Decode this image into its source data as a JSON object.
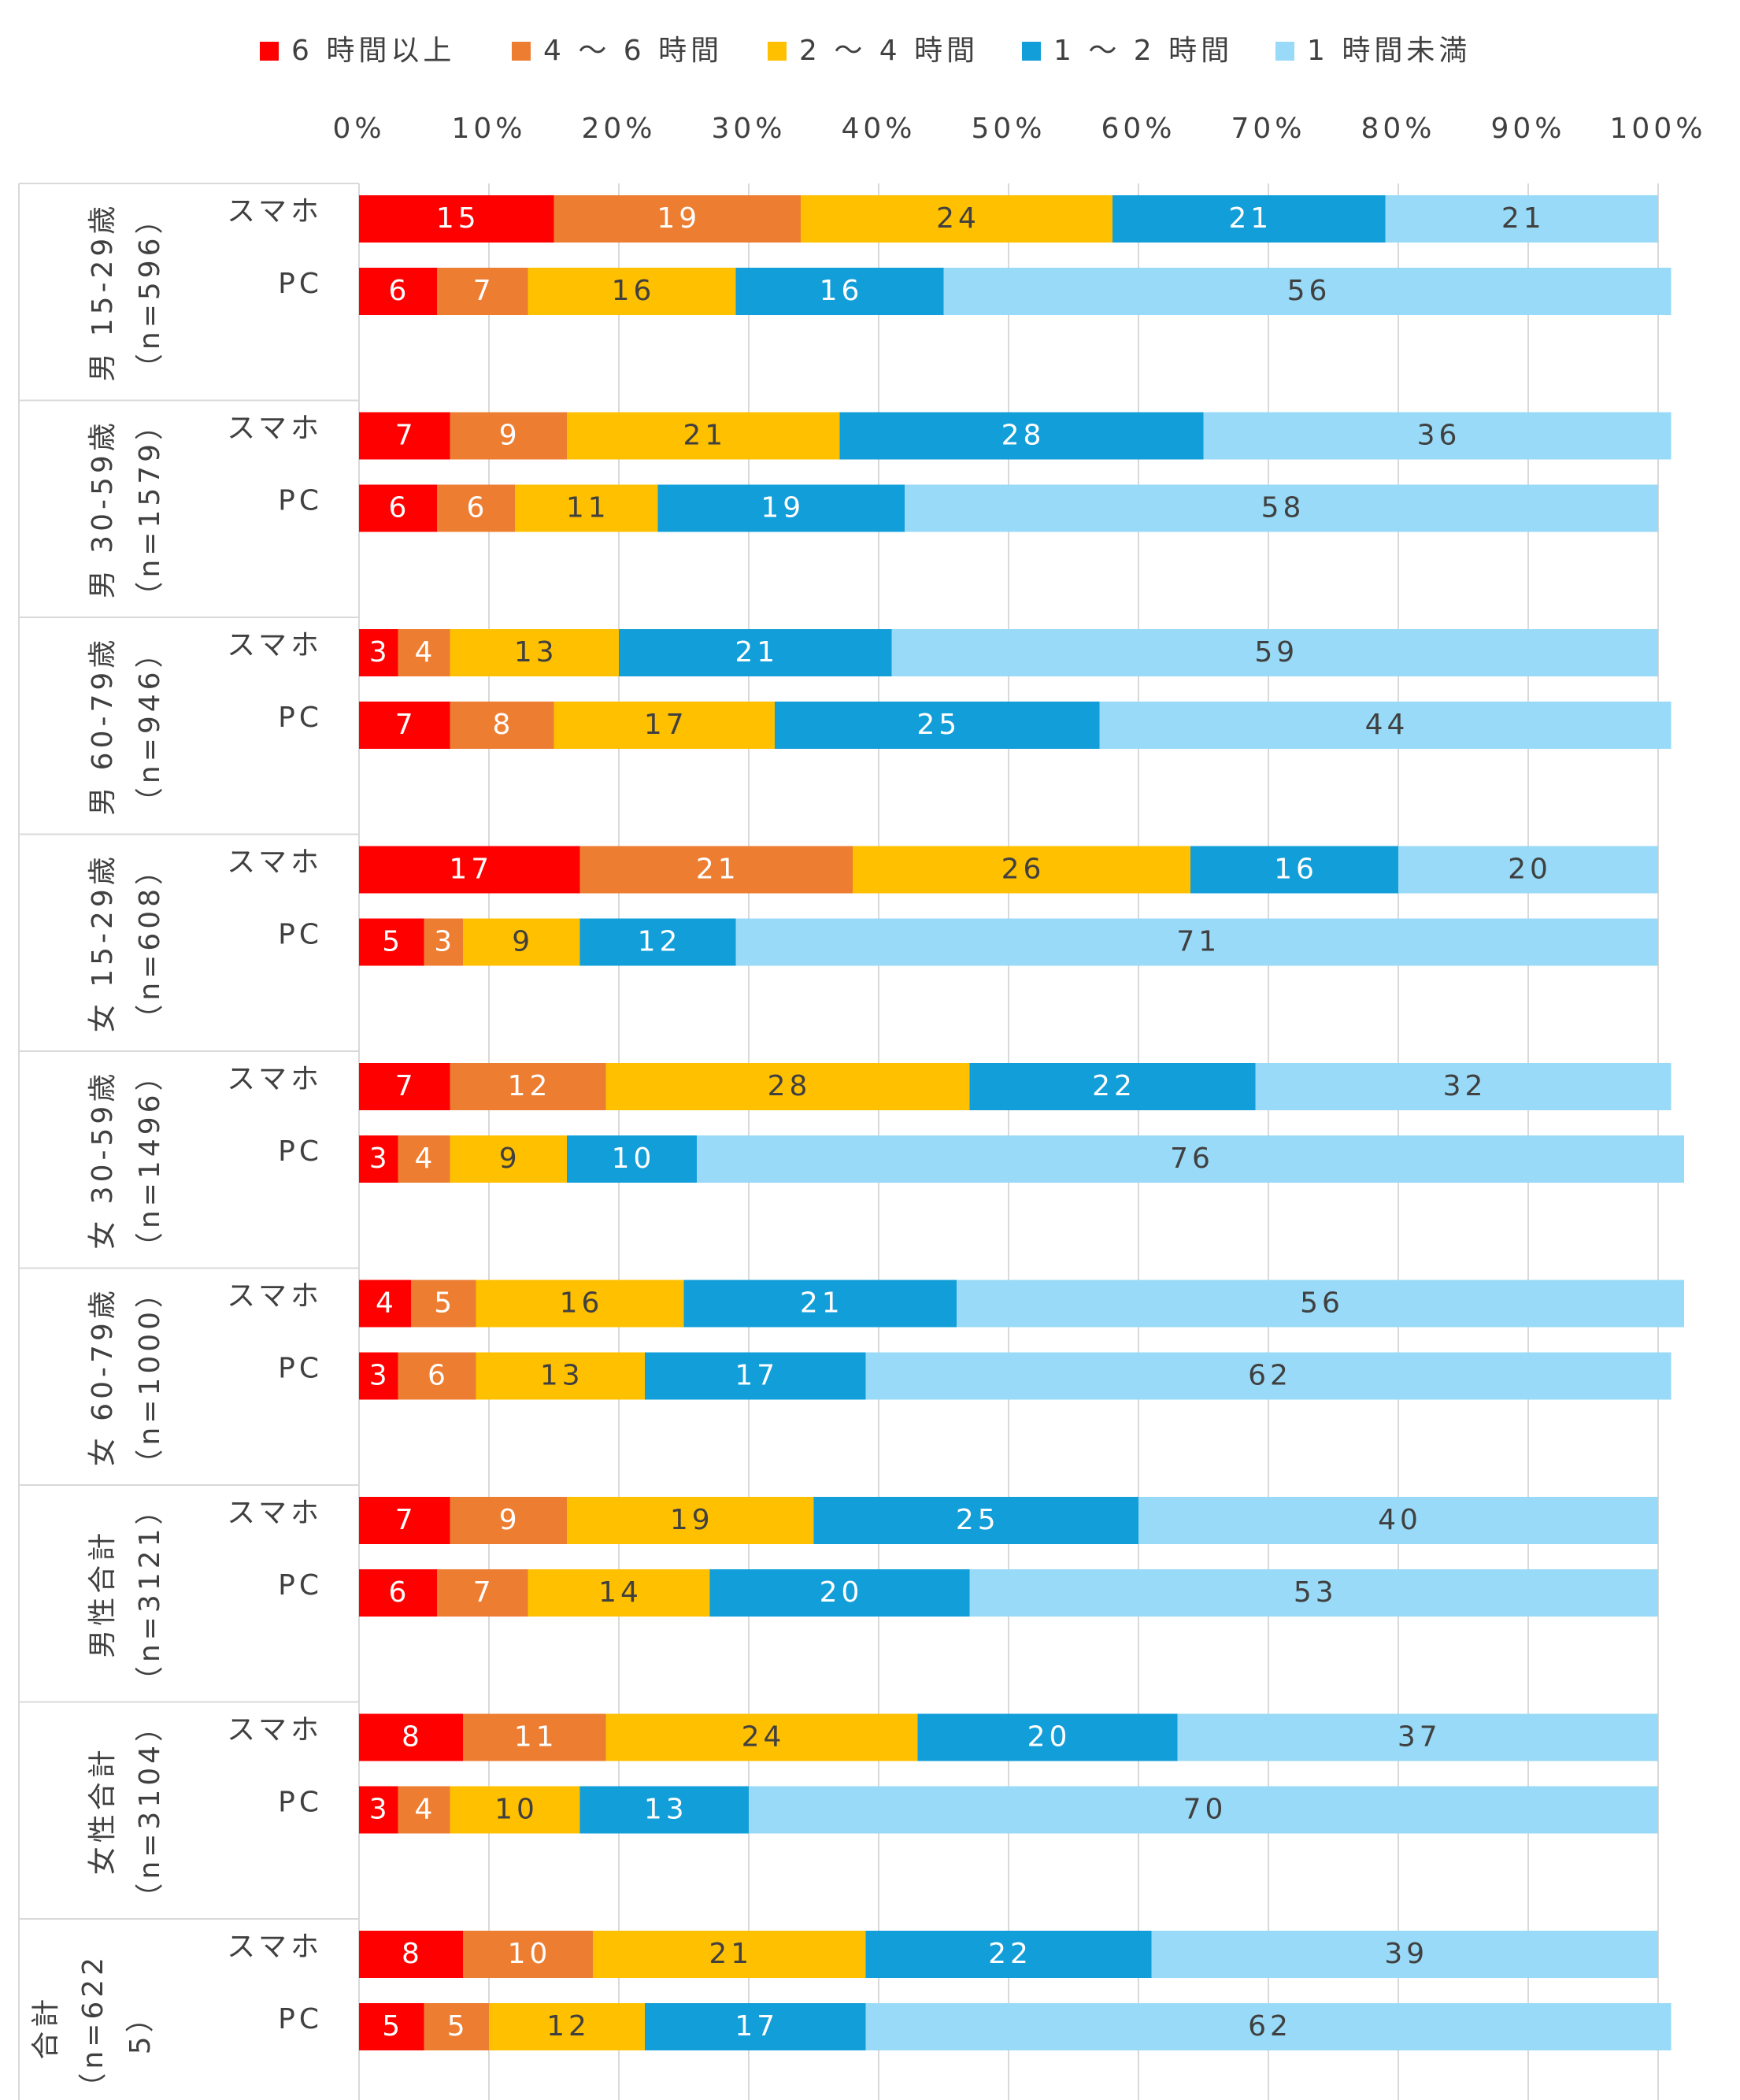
{
  "chart_data": {
    "type": "stacked-bar-horizontal",
    "legend": {
      "position": "top"
    },
    "xlim": [
      0,
      100
    ],
    "xticks": [
      {
        "value": 0,
        "label": "0%"
      },
      {
        "value": 10,
        "label": "10%"
      },
      {
        "value": 20,
        "label": "20%"
      },
      {
        "value": 30,
        "label": "30%"
      },
      {
        "value": 40,
        "label": "40%"
      },
      {
        "value": 50,
        "label": "50%"
      },
      {
        "value": 60,
        "label": "60%"
      },
      {
        "value": 70,
        "label": "70%"
      },
      {
        "value": 80,
        "label": "80%"
      },
      {
        "value": 90,
        "label": "90%"
      },
      {
        "value": 100,
        "label": "100%"
      }
    ],
    "grid": true,
    "groups": [
      [
        "男 15-29歳",
        "（n=596）"
      ],
      [
        "男 30-59歳",
        "（n=1579）"
      ],
      [
        "男 60-79歳",
        "（n=946）"
      ],
      [
        "女 15-29歳",
        "（n=608）"
      ],
      [
        "女 30-59歳",
        "（n=1496）"
      ],
      [
        "女 60-79歳",
        "（n=1000）"
      ],
      [
        "男性合計",
        "（n=3121）"
      ],
      [
        "女性合計",
        "（n=3104）"
      ],
      [
        "合計",
        "（n=622",
        "5）"
      ]
    ],
    "categories": [
      "スマホ",
      "PC",
      "スマホ",
      "PC",
      "スマホ",
      "PC",
      "スマホ",
      "PC",
      "スマホ",
      "PC",
      "スマホ",
      "PC",
      "スマホ",
      "PC",
      "スマホ",
      "PC",
      "スマホ",
      "PC"
    ],
    "series": [
      {
        "name": "6 時間以上",
        "color": "#ff0000",
        "text_color": "#ffffff",
        "values": [
          15,
          6,
          7,
          6,
          3,
          7,
          17,
          5,
          7,
          3,
          4,
          3,
          7,
          6,
          8,
          3,
          8,
          5
        ]
      },
      {
        "name": "4 ～ 6 時間",
        "color": "#ed7d31",
        "text_color": "#ffffff",
        "values": [
          19,
          7,
          9,
          6,
          4,
          8,
          21,
          3,
          12,
          4,
          5,
          6,
          9,
          7,
          11,
          4,
          10,
          5
        ]
      },
      {
        "name": "2 ～ 4 時間",
        "color": "#ffc000",
        "text_color": "#404040",
        "values": [
          24,
          16,
          21,
          11,
          13,
          17,
          26,
          9,
          28,
          9,
          16,
          13,
          19,
          14,
          24,
          10,
          21,
          12
        ]
      },
      {
        "name": "1 ～ 2 時間",
        "color": "#129ed8",
        "text_color": "#ffffff",
        "values": [
          21,
          16,
          28,
          19,
          21,
          25,
          16,
          12,
          22,
          10,
          21,
          17,
          25,
          20,
          20,
          13,
          22,
          17
        ]
      },
      {
        "name": "1 時間未満",
        "color": "#98daf7",
        "text_color": "#404040",
        "values": [
          21,
          56,
          36,
          58,
          59,
          44,
          20,
          71,
          32,
          76,
          56,
          62,
          40,
          53,
          37,
          70,
          39,
          62
        ]
      }
    ]
  }
}
